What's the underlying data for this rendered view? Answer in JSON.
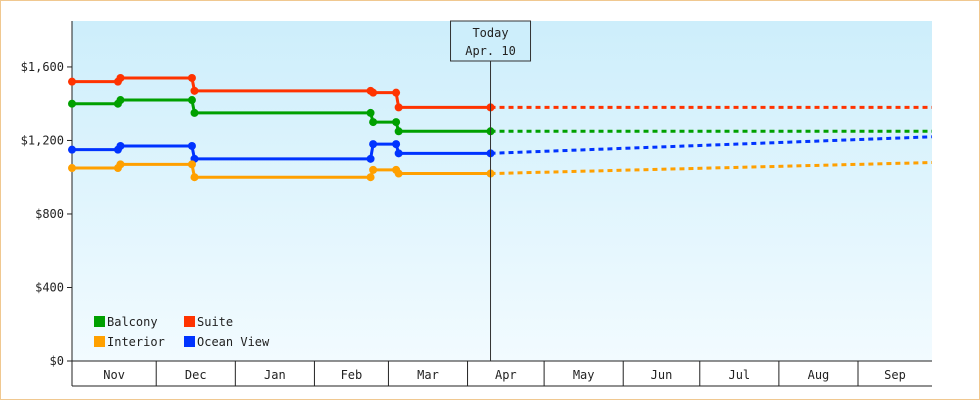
{
  "chart_data": {
    "type": "line",
    "title": "",
    "xlabel": "",
    "ylabel": "",
    "ylim": [
      0,
      1850
    ],
    "yticks": [
      0,
      400,
      800,
      1200,
      1600
    ],
    "ytick_labels": [
      "$0",
      "$400",
      "$800",
      "$1,200",
      "$1,600"
    ],
    "x_range": [
      "2023-10-29",
      "2024-09-30"
    ],
    "month_labels": [
      "Nov",
      "Dec",
      "Jan",
      "Feb",
      "Mar",
      "Apr",
      "May",
      "Jun",
      "Jul",
      "Aug",
      "Sep"
    ],
    "today_marker": {
      "date": "2024-04-10",
      "line1": "Today",
      "line2": "Apr. 10"
    },
    "grid": false,
    "legend_position": "bottom-left",
    "series": [
      {
        "name": "Suite",
        "color": "#ff3300",
        "history": [
          [
            "2023-10-29",
            1520
          ],
          [
            "2023-11-16",
            1520
          ],
          [
            "2023-11-17",
            1540
          ],
          [
            "2023-12-15",
            1540
          ],
          [
            "2023-12-16",
            1470
          ],
          [
            "2024-02-23",
            1470
          ],
          [
            "2024-02-24",
            1460
          ],
          [
            "2024-03-04",
            1460
          ],
          [
            "2024-03-05",
            1380
          ],
          [
            "2024-04-10",
            1380
          ]
        ],
        "forecast": [
          [
            "2024-04-10",
            1380
          ],
          [
            "2024-09-30",
            1380
          ]
        ]
      },
      {
        "name": "Balcony",
        "color": "#00a000",
        "history": [
          [
            "2023-10-29",
            1400
          ],
          [
            "2023-11-16",
            1400
          ],
          [
            "2023-11-17",
            1420
          ],
          [
            "2023-12-15",
            1420
          ],
          [
            "2023-12-16",
            1350
          ],
          [
            "2024-02-23",
            1350
          ],
          [
            "2024-02-24",
            1300
          ],
          [
            "2024-03-04",
            1300
          ],
          [
            "2024-03-05",
            1250
          ],
          [
            "2024-04-10",
            1250
          ]
        ],
        "forecast": [
          [
            "2024-04-10",
            1250
          ],
          [
            "2024-09-30",
            1250
          ]
        ]
      },
      {
        "name": "Ocean View",
        "color": "#0033ff",
        "history": [
          [
            "2023-10-29",
            1150
          ],
          [
            "2023-11-16",
            1150
          ],
          [
            "2023-11-17",
            1170
          ],
          [
            "2023-12-15",
            1170
          ],
          [
            "2023-12-16",
            1100
          ],
          [
            "2024-02-23",
            1100
          ],
          [
            "2024-02-24",
            1180
          ],
          [
            "2024-03-04",
            1180
          ],
          [
            "2024-03-05",
            1130
          ],
          [
            "2024-04-10",
            1130
          ]
        ],
        "forecast": [
          [
            "2024-04-10",
            1130
          ],
          [
            "2024-09-30",
            1220
          ]
        ]
      },
      {
        "name": "Interior",
        "color": "#ffa000",
        "history": [
          [
            "2023-10-29",
            1050
          ],
          [
            "2023-11-16",
            1050
          ],
          [
            "2023-11-17",
            1070
          ],
          [
            "2023-12-15",
            1070
          ],
          [
            "2023-12-16",
            1000
          ],
          [
            "2024-02-23",
            1000
          ],
          [
            "2024-02-24",
            1040
          ],
          [
            "2024-03-04",
            1040
          ],
          [
            "2024-03-05",
            1020
          ],
          [
            "2024-04-10",
            1020
          ]
        ],
        "forecast": [
          [
            "2024-04-10",
            1020
          ],
          [
            "2024-09-30",
            1080
          ]
        ]
      }
    ],
    "legend": [
      {
        "name": "Balcony",
        "color": "#00a000"
      },
      {
        "name": "Suite",
        "color": "#ff3300"
      },
      {
        "name": "Interior",
        "color": "#ffa000"
      },
      {
        "name": "Ocean View",
        "color": "#0033ff"
      }
    ]
  }
}
